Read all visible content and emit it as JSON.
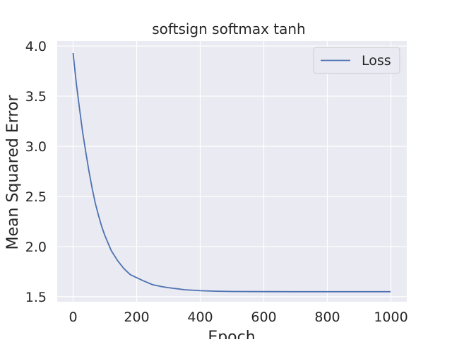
{
  "chart_data": {
    "type": "line",
    "title": "softsign softmax tanh",
    "xlabel": "Epoch",
    "ylabel": "Mean Squared Error",
    "xlim": [
      -50,
      1050
    ],
    "ylim": [
      1.45,
      4.05
    ],
    "xticks": [
      0,
      200,
      400,
      600,
      800,
      1000
    ],
    "yticks": [
      1.5,
      2.0,
      2.5,
      3.0,
      3.5,
      4.0
    ],
    "xtick_labels": [
      "0",
      "200",
      "400",
      "600",
      "800",
      "1000"
    ],
    "ytick_labels": [
      "1.5",
      "2.0",
      "2.5",
      "3.0",
      "3.5",
      "4.0"
    ],
    "grid": true,
    "legend_position": "upper right",
    "series": [
      {
        "name": "Loss",
        "color": "#4c72b0",
        "x": [
          0,
          10,
          20,
          30,
          40,
          50,
          60,
          70,
          80,
          90,
          100,
          120,
          140,
          160,
          180,
          200,
          220,
          250,
          280,
          300,
          350,
          400,
          450,
          500,
          600,
          700,
          800,
          900,
          999
        ],
        "values": [
          3.93,
          3.63,
          3.38,
          3.14,
          2.94,
          2.75,
          2.58,
          2.43,
          2.31,
          2.2,
          2.11,
          1.96,
          1.86,
          1.78,
          1.72,
          1.69,
          1.66,
          1.62,
          1.6,
          1.59,
          1.57,
          1.56,
          1.555,
          1.552,
          1.551,
          1.55,
          1.55,
          1.55,
          1.55
        ]
      }
    ]
  }
}
